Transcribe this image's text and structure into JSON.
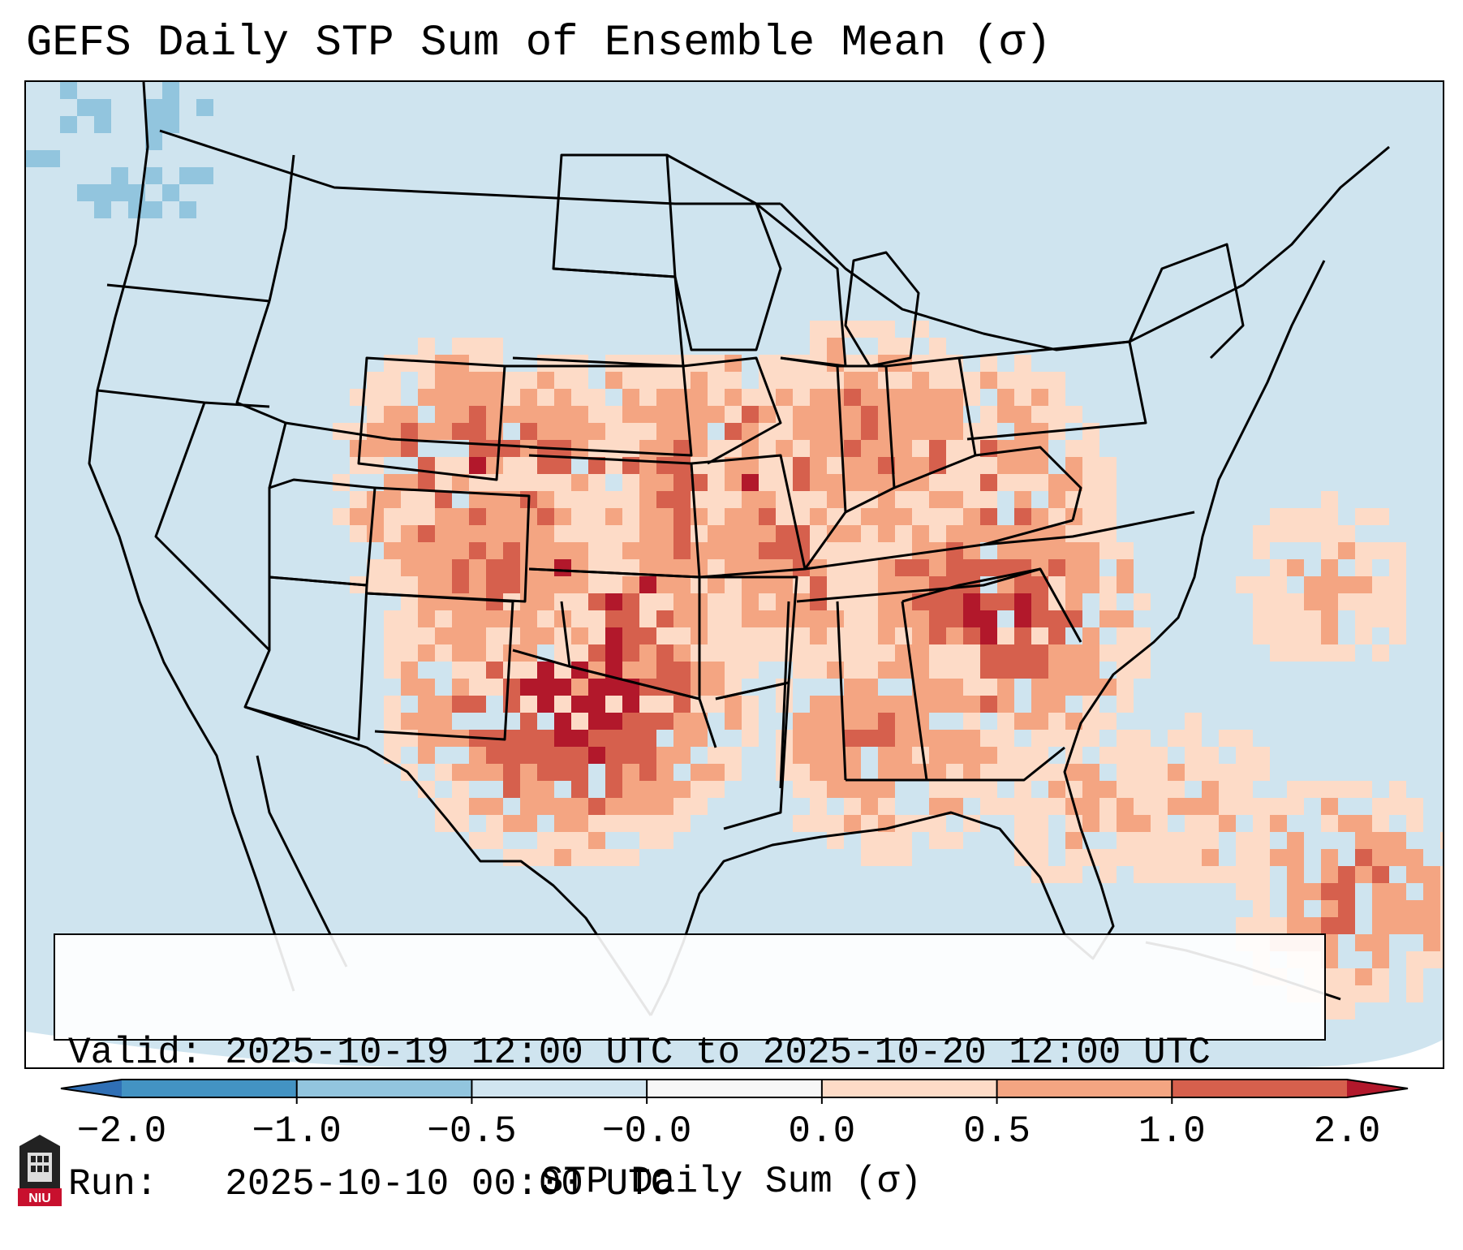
{
  "title": "GEFS Daily STP Sum of Ensemble Mean (σ)",
  "info": {
    "valid": "Valid: 2025-10-19 12:00 UTC to 2025-10-20 12:00 UTC",
    "run": "Run:   2025-10-10 00:00 UTC"
  },
  "colorbar": {
    "label": "STP Daily Sum (σ)",
    "ticks": [
      "−2.0",
      "−1.0",
      "−0.5",
      "−0.0",
      "0.0",
      "0.5",
      "1.0",
      "2.0"
    ],
    "colors": [
      "#2f6fb5",
      "#4393c3",
      "#92c5de",
      "#d1e5f0",
      "#f7f7f7",
      "#fddbc7",
      "#f4a582",
      "#d6604d",
      "#b2182b"
    ],
    "extend": "both"
  },
  "logo": {
    "text": "NIU",
    "icon": "niu-logo-icon"
  },
  "colors": {
    "ocean_background": "#cfe4ef",
    "low_positive": "#fddbc7",
    "mid_positive": "#f4a582",
    "high_positive": "#d6604d",
    "highest_positive": "#b2182b",
    "negative": "#92c5de",
    "boundary": "#000000"
  },
  "legend_location": "bottom-left"
}
